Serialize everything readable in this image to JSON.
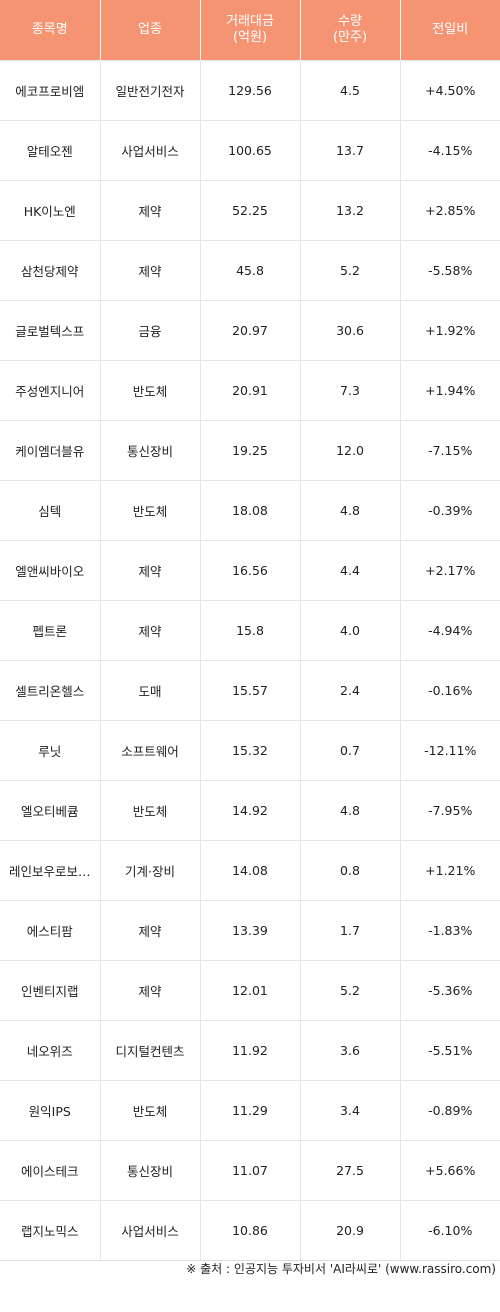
{
  "header": {
    "col_name": "종목명",
    "col_sector": "업종",
    "col_amount_line1": "거래대금",
    "col_amount_line2": "(억원)",
    "col_volume_line1": "수량",
    "col_volume_line2": "(만주)",
    "col_change": "전일비"
  },
  "rows": [
    {
      "name": "에코프로비엠",
      "sector": "일반전기전자",
      "amount": "129.56",
      "volume": "4.5",
      "change": "+4.50%",
      "direction": "up"
    },
    {
      "name": "알테오젠",
      "sector": "사업서비스",
      "amount": "100.65",
      "volume": "13.7",
      "change": "-4.15%",
      "direction": "down"
    },
    {
      "name": "HK이노엔",
      "sector": "제약",
      "amount": "52.25",
      "volume": "13.2",
      "change": "+2.85%",
      "direction": "up"
    },
    {
      "name": "삼천당제약",
      "sector": "제약",
      "amount": "45.8",
      "volume": "5.2",
      "change": "-5.58%",
      "direction": "down"
    },
    {
      "name": "글로벌텍스프",
      "sector": "금융",
      "amount": "20.97",
      "volume": "30.6",
      "change": "+1.92%",
      "direction": "up"
    },
    {
      "name": "주성엔지니어",
      "sector": "반도체",
      "amount": "20.91",
      "volume": "7.3",
      "change": "+1.94%",
      "direction": "up"
    },
    {
      "name": "케이엠더블유",
      "sector": "통신장비",
      "amount": "19.25",
      "volume": "12.0",
      "change": "-7.15%",
      "direction": "down"
    },
    {
      "name": "심텍",
      "sector": "반도체",
      "amount": "18.08",
      "volume": "4.8",
      "change": "-0.39%",
      "direction": "down"
    },
    {
      "name": "엘앤씨바이오",
      "sector": "제약",
      "amount": "16.56",
      "volume": "4.4",
      "change": "+2.17%",
      "direction": "up"
    },
    {
      "name": "펩트론",
      "sector": "제약",
      "amount": "15.8",
      "volume": "4.0",
      "change": "-4.94%",
      "direction": "down"
    },
    {
      "name": "셀트리온헬스",
      "sector": "도매",
      "amount": "15.57",
      "volume": "2.4",
      "change": "-0.16%",
      "direction": "down"
    },
    {
      "name": "루닛",
      "sector": "소프트웨어",
      "amount": "15.32",
      "volume": "0.7",
      "change": "-12.11%",
      "direction": "down"
    },
    {
      "name": "엘오티베큠",
      "sector": "반도체",
      "amount": "14.92",
      "volume": "4.8",
      "change": "-7.95%",
      "direction": "down"
    },
    {
      "name": "레인보우로보…",
      "sector": "기계·장비",
      "amount": "14.08",
      "volume": "0.8",
      "change": "+1.21%",
      "direction": "up"
    },
    {
      "name": "에스티팜",
      "sector": "제약",
      "amount": "13.39",
      "volume": "1.7",
      "change": "-1.83%",
      "direction": "down"
    },
    {
      "name": "인벤티지랩",
      "sector": "제약",
      "amount": "12.01",
      "volume": "5.2",
      "change": "-5.36%",
      "direction": "down"
    },
    {
      "name": "네오위즈",
      "sector": "디지털컨텐츠",
      "amount": "11.92",
      "volume": "3.6",
      "change": "-5.51%",
      "direction": "down"
    },
    {
      "name": "원익IPS",
      "sector": "반도체",
      "amount": "11.29",
      "volume": "3.4",
      "change": "-0.89%",
      "direction": "down"
    },
    {
      "name": "에이스테크",
      "sector": "통신장비",
      "amount": "11.07",
      "volume": "27.5",
      "change": "+5.66%",
      "direction": "up"
    },
    {
      "name": "랩지노믹스",
      "sector": "사업서비스",
      "amount": "10.86",
      "volume": "20.9",
      "change": "-6.10%",
      "direction": "down"
    }
  ],
  "colors": {
    "header_bg": "#f59473",
    "up": "#e8272c",
    "down": "#2a3bb8"
  },
  "footer": {
    "source": "※ 출처 : 인공지능 투자비서 'AI라씨로' (www.rassiro.com)"
  }
}
